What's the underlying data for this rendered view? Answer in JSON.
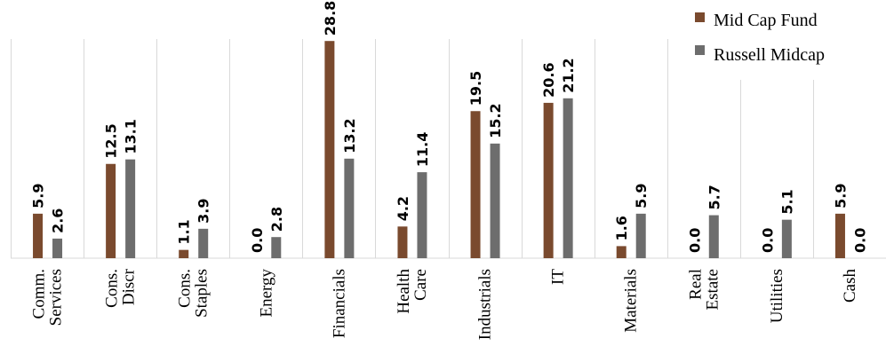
{
  "chart_data": {
    "type": "bar",
    "title": "",
    "xlabel": "",
    "ylabel": "",
    "ylim": [
      0,
      30
    ],
    "grid": false,
    "legend_position": "top-right",
    "categories": [
      [
        "Comm.",
        "Services"
      ],
      [
        "Cons.",
        "Discr"
      ],
      [
        "Cons.",
        "Staples"
      ],
      [
        "Energy"
      ],
      [
        "Financials"
      ],
      [
        "Health",
        "Care"
      ],
      [
        "Industrials"
      ],
      [
        "IT"
      ],
      [
        "Materials"
      ],
      [
        "Real",
        "Estate"
      ],
      [
        "Utilities"
      ],
      [
        "Cash"
      ]
    ],
    "series": [
      {
        "name": "Mid Cap Fund",
        "color": "#7a4a2e",
        "values": [
          5.9,
          12.5,
          1.1,
          0.0,
          28.8,
          4.2,
          19.5,
          20.6,
          1.6,
          0.0,
          0.0,
          5.9
        ]
      },
      {
        "name": "Russell Midcap",
        "color": "#6d6d6d",
        "values": [
          2.6,
          13.1,
          3.9,
          2.8,
          13.2,
          11.4,
          15.2,
          21.2,
          5.9,
          5.7,
          5.1,
          0.0
        ]
      }
    ]
  }
}
